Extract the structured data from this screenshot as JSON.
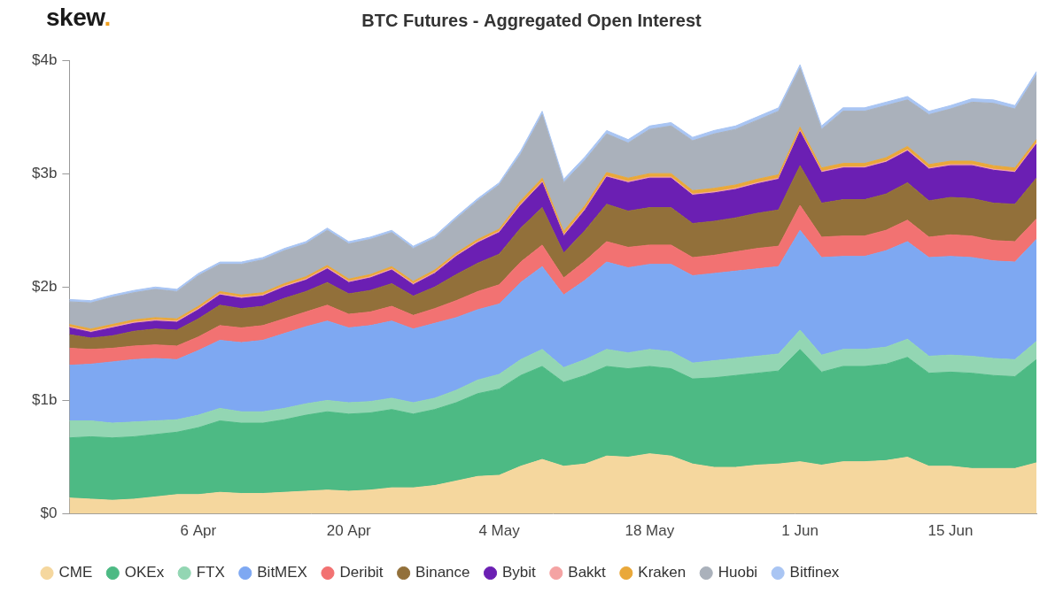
{
  "chart_data": {
    "type": "area",
    "title": "BTC Futures - Aggregated Open Interest",
    "annotations": [
      "skew."
    ],
    "stacked": true,
    "grid": false,
    "legend": "bottom-left",
    "categories": [
      null,
      null,
      null,
      null,
      null,
      null,
      "6 Apr",
      null,
      null,
      null,
      null,
      null,
      null,
      "20 Apr",
      null,
      null,
      null,
      null,
      null,
      null,
      "4 May",
      null,
      null,
      null,
      null,
      null,
      null,
      "18 May",
      null,
      null,
      null,
      null,
      null,
      null,
      "1 Jun",
      null,
      null,
      null,
      null,
      null,
      null,
      "15 Jun",
      null,
      null,
      null,
      null
    ],
    "ylim": [
      0,
      4
    ],
    "yticks": [
      {
        "value": 0,
        "label": "$0"
      },
      {
        "value": 1,
        "label": "$1b"
      },
      {
        "value": 2,
        "label": "$2b"
      },
      {
        "value": 3,
        "label": "$3b"
      },
      {
        "value": 4,
        "label": "$4b"
      }
    ],
    "series": [
      {
        "name": "CME",
        "color": "#f5d79e",
        "values": [
          0.14,
          0.13,
          0.12,
          0.13,
          0.15,
          0.17,
          0.17,
          0.19,
          0.18,
          0.18,
          0.19,
          0.2,
          0.21,
          0.2,
          0.21,
          0.23,
          0.23,
          0.25,
          0.29,
          0.33,
          0.34,
          0.42,
          0.48,
          0.42,
          0.44,
          0.51,
          0.5,
          0.53,
          0.51,
          0.44,
          0.41,
          0.41,
          0.43,
          0.44,
          0.46,
          0.43,
          0.46,
          0.46,
          0.47,
          0.5,
          0.42,
          0.42,
          0.4,
          0.4,
          0.4,
          0.45
        ]
      },
      {
        "name": "OKEx",
        "color": "#4dba84",
        "values": [
          0.53,
          0.55,
          0.55,
          0.55,
          0.55,
          0.55,
          0.59,
          0.63,
          0.62,
          0.62,
          0.64,
          0.67,
          0.69,
          0.68,
          0.68,
          0.69,
          0.65,
          0.67,
          0.69,
          0.73,
          0.76,
          0.8,
          0.82,
          0.74,
          0.78,
          0.79,
          0.78,
          0.77,
          0.77,
          0.75,
          0.79,
          0.81,
          0.81,
          0.82,
          0.99,
          0.82,
          0.84,
          0.84,
          0.85,
          0.88,
          0.82,
          0.83,
          0.84,
          0.82,
          0.81,
          0.91
        ]
      },
      {
        "name": "FTX",
        "color": "#93d6b3",
        "values": [
          0.15,
          0.14,
          0.13,
          0.13,
          0.12,
          0.11,
          0.11,
          0.11,
          0.1,
          0.1,
          0.1,
          0.1,
          0.1,
          0.1,
          0.1,
          0.1,
          0.1,
          0.1,
          0.11,
          0.12,
          0.13,
          0.14,
          0.15,
          0.13,
          0.14,
          0.15,
          0.14,
          0.15,
          0.15,
          0.14,
          0.15,
          0.15,
          0.15,
          0.15,
          0.17,
          0.15,
          0.15,
          0.15,
          0.15,
          0.16,
          0.15,
          0.15,
          0.15,
          0.15,
          0.15,
          0.16
        ]
      },
      {
        "name": "BitMEX",
        "color": "#7ea8f2",
        "values": [
          0.49,
          0.5,
          0.54,
          0.55,
          0.55,
          0.53,
          0.57,
          0.6,
          0.61,
          0.63,
          0.66,
          0.68,
          0.7,
          0.66,
          0.67,
          0.68,
          0.65,
          0.66,
          0.64,
          0.62,
          0.62,
          0.68,
          0.73,
          0.64,
          0.7,
          0.77,
          0.75,
          0.75,
          0.77,
          0.77,
          0.77,
          0.77,
          0.77,
          0.77,
          0.88,
          0.86,
          0.82,
          0.82,
          0.85,
          0.86,
          0.87,
          0.87,
          0.87,
          0.86,
          0.86,
          0.9
        ]
      },
      {
        "name": "Deribit",
        "color": "#f27272",
        "values": [
          0.15,
          0.13,
          0.12,
          0.12,
          0.12,
          0.12,
          0.12,
          0.13,
          0.13,
          0.13,
          0.13,
          0.13,
          0.14,
          0.12,
          0.12,
          0.13,
          0.12,
          0.13,
          0.15,
          0.16,
          0.17,
          0.18,
          0.19,
          0.15,
          0.17,
          0.18,
          0.18,
          0.17,
          0.17,
          0.16,
          0.16,
          0.17,
          0.18,
          0.18,
          0.22,
          0.18,
          0.18,
          0.18,
          0.18,
          0.19,
          0.18,
          0.19,
          0.19,
          0.18,
          0.18,
          0.18
        ]
      },
      {
        "name": "Binance",
        "color": "#92703a",
        "values": [
          0.12,
          0.1,
          0.11,
          0.13,
          0.14,
          0.14,
          0.16,
          0.18,
          0.17,
          0.17,
          0.18,
          0.18,
          0.2,
          0.18,
          0.19,
          0.2,
          0.17,
          0.19,
          0.23,
          0.25,
          0.27,
          0.3,
          0.33,
          0.22,
          0.27,
          0.33,
          0.32,
          0.33,
          0.33,
          0.3,
          0.3,
          0.3,
          0.31,
          0.32,
          0.35,
          0.3,
          0.32,
          0.32,
          0.32,
          0.33,
          0.32,
          0.33,
          0.33,
          0.33,
          0.33,
          0.36
        ]
      },
      {
        "name": "Bybit",
        "color": "#6b1fb3",
        "values": [
          0.06,
          0.05,
          0.07,
          0.07,
          0.07,
          0.07,
          0.08,
          0.09,
          0.09,
          0.09,
          0.1,
          0.1,
          0.12,
          0.1,
          0.11,
          0.12,
          0.1,
          0.12,
          0.16,
          0.18,
          0.19,
          0.2,
          0.22,
          0.15,
          0.18,
          0.24,
          0.25,
          0.26,
          0.26,
          0.25,
          0.25,
          0.25,
          0.26,
          0.27,
          0.3,
          0.27,
          0.28,
          0.28,
          0.28,
          0.28,
          0.28,
          0.28,
          0.29,
          0.29,
          0.28,
          0.3
        ]
      },
      {
        "name": "Bakkt",
        "color": "#f4a3a3",
        "values": [
          0.01,
          0.01,
          0.01,
          0.01,
          0.01,
          0.01,
          0.01,
          0.01,
          0.01,
          0.01,
          0.01,
          0.01,
          0.01,
          0.01,
          0.01,
          0.01,
          0.01,
          0.01,
          0.01,
          0.01,
          0.01,
          0.01,
          0.01,
          0.01,
          0.01,
          0.01,
          0.01,
          0.01,
          0.01,
          0.01,
          0.01,
          0.01,
          0.01,
          0.01,
          0.01,
          0.01,
          0.01,
          0.01,
          0.01,
          0.01,
          0.01,
          0.01,
          0.01,
          0.01,
          0.01,
          0.01
        ]
      },
      {
        "name": "Kraken",
        "color": "#e9a83a",
        "values": [
          0.02,
          0.02,
          0.02,
          0.02,
          0.02,
          0.02,
          0.02,
          0.02,
          0.02,
          0.02,
          0.02,
          0.02,
          0.02,
          0.02,
          0.02,
          0.02,
          0.02,
          0.02,
          0.02,
          0.02,
          0.02,
          0.03,
          0.03,
          0.03,
          0.03,
          0.03,
          0.03,
          0.03,
          0.03,
          0.03,
          0.03,
          0.03,
          0.03,
          0.03,
          0.03,
          0.03,
          0.03,
          0.03,
          0.03,
          0.03,
          0.03,
          0.03,
          0.03,
          0.03,
          0.03,
          0.03
        ]
      },
      {
        "name": "Huobi",
        "color": "#aab1bb",
        "values": [
          0.2,
          0.23,
          0.24,
          0.24,
          0.25,
          0.24,
          0.27,
          0.24,
          0.27,
          0.29,
          0.29,
          0.29,
          0.31,
          0.31,
          0.31,
          0.3,
          0.29,
          0.28,
          0.3,
          0.34,
          0.39,
          0.41,
          0.56,
          0.43,
          0.4,
          0.34,
          0.31,
          0.39,
          0.42,
          0.44,
          0.48,
          0.49,
          0.52,
          0.56,
          0.52,
          0.34,
          0.46,
          0.46,
          0.46,
          0.41,
          0.44,
          0.46,
          0.52,
          0.55,
          0.52,
          0.57
        ]
      },
      {
        "name": "Bitfinex",
        "color": "#a9c5f3",
        "values": [
          0.02,
          0.02,
          0.02,
          0.02,
          0.02,
          0.02,
          0.02,
          0.02,
          0.02,
          0.02,
          0.02,
          0.02,
          0.02,
          0.02,
          0.02,
          0.02,
          0.02,
          0.02,
          0.02,
          0.02,
          0.02,
          0.03,
          0.03,
          0.03,
          0.03,
          0.03,
          0.03,
          0.03,
          0.03,
          0.03,
          0.03,
          0.03,
          0.03,
          0.03,
          0.03,
          0.03,
          0.03,
          0.03,
          0.03,
          0.03,
          0.03,
          0.03,
          0.03,
          0.03,
          0.03,
          0.03
        ]
      }
    ]
  }
}
